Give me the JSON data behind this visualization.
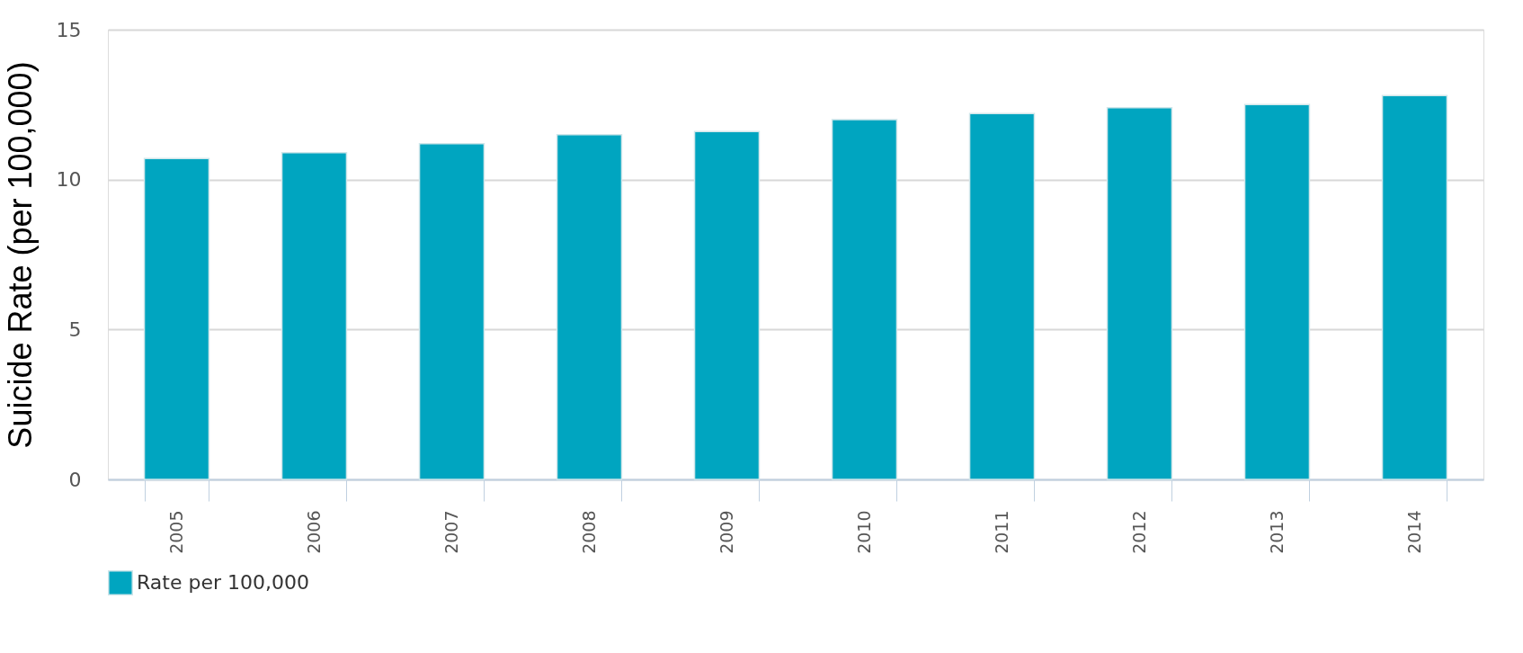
{
  "chart_data": {
    "type": "bar",
    "ylabel": "Suicide Rate (per 100,000)",
    "categories": [
      "2005",
      "2006",
      "2007",
      "2008",
      "2009",
      "2010",
      "2011",
      "2012",
      "2013",
      "2014"
    ],
    "series": [
      {
        "name": "Rate per 100,000",
        "color": "#00a5c0",
        "values": [
          10.7,
          10.9,
          11.2,
          11.5,
          11.6,
          12.0,
          12.2,
          12.4,
          12.5,
          12.8
        ]
      }
    ],
    "ylim": [
      0,
      15
    ],
    "yticks": [
      0,
      5,
      10,
      15
    ],
    "grid": "y",
    "legend": "bottom"
  }
}
